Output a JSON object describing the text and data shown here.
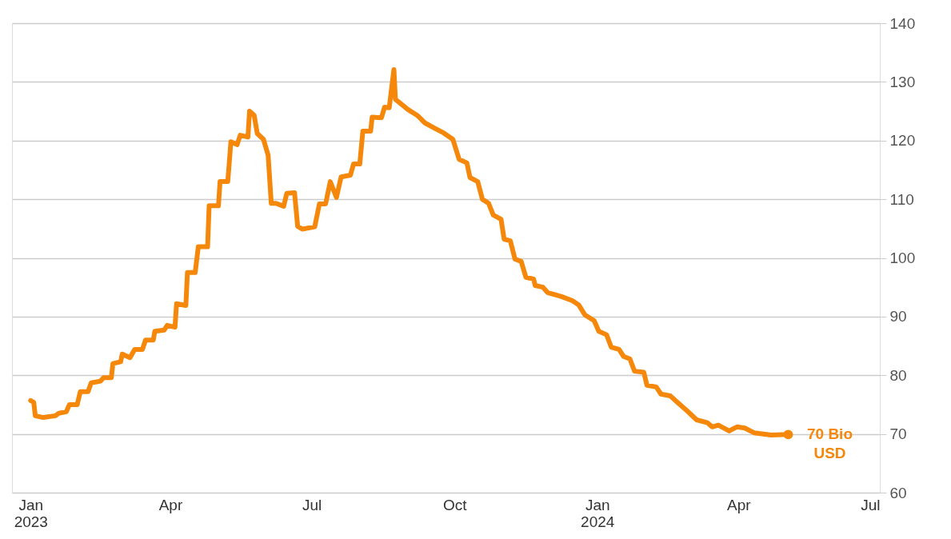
{
  "chart_data": {
    "type": "line",
    "x": [
      "2023-01-01",
      "2023-01-03",
      "2023-01-04",
      "2023-01-09",
      "2023-01-17",
      "2023-01-19",
      "2023-01-24",
      "2023-01-26",
      "2023-01-31",
      "2023-02-02",
      "2023-02-07",
      "2023-02-09",
      "2023-02-15",
      "2023-02-17",
      "2023-02-22",
      "2023-02-23",
      "2023-02-28",
      "2023-03-01",
      "2023-03-06",
      "2023-03-09",
      "2023-03-14",
      "2023-03-16",
      "2023-03-21",
      "2023-03-22",
      "2023-03-28",
      "2023-03-30",
      "2023-04-04",
      "2023-04-05",
      "2023-04-11",
      "2023-04-12",
      "2023-04-17",
      "2023-04-19",
      "2023-04-25",
      "2023-04-26",
      "2023-05-02",
      "2023-05-03",
      "2023-05-08",
      "2023-05-10",
      "2023-05-14",
      "2023-05-16",
      "2023-05-21",
      "2023-05-22",
      "2023-05-25",
      "2023-05-27",
      "2023-05-31",
      "2023-06-03",
      "2023-06-05",
      "2023-06-08",
      "2023-06-13",
      "2023-06-15",
      "2023-06-20",
      "2023-06-22",
      "2023-06-25",
      "2023-07-03",
      "2023-07-06",
      "2023-07-10",
      "2023-07-13",
      "2023-07-17",
      "2023-07-20",
      "2023-07-26",
      "2023-07-28",
      "2023-08-01",
      "2023-08-03",
      "2023-08-08",
      "2023-08-09",
      "2023-08-15",
      "2023-08-17",
      "2023-08-20",
      "2023-08-23",
      "2023-08-24",
      "2023-08-26",
      "2023-09-01",
      "2023-09-07",
      "2023-09-12",
      "2023-09-19",
      "2023-09-24",
      "2023-09-30",
      "2023-10-04",
      "2023-10-09",
      "2023-10-11",
      "2023-10-16",
      "2023-10-19",
      "2023-10-23",
      "2023-10-26",
      "2023-10-31",
      "2023-11-02",
      "2023-11-06",
      "2023-11-09",
      "2023-11-13",
      "2023-11-16",
      "2023-11-21",
      "2023-11-22",
      "2023-11-27",
      "2023-11-30",
      "2023-12-05",
      "2023-12-09",
      "2023-12-16",
      "2023-12-20",
      "2023-12-24",
      "2023-12-30",
      "2024-01-02",
      "2024-01-07",
      "2024-01-10",
      "2024-01-15",
      "2024-01-18",
      "2024-01-22",
      "2024-01-25",
      "2024-01-31",
      "2024-02-02",
      "2024-02-08",
      "2024-02-11",
      "2024-02-17",
      "2024-02-22",
      "2024-02-28",
      "2024-03-05",
      "2024-03-12",
      "2024-03-15",
      "2024-03-19",
      "2024-03-26",
      "2024-03-28",
      "2024-03-31",
      "2024-04-05",
      "2024-04-11",
      "2024-04-22",
      "2024-05-03"
    ],
    "series": [
      {
        "color": "#f5880a",
        "values": [
          75.7,
          75.4,
          73.1,
          72.8,
          73.1,
          73.5,
          73.8,
          75,
          75,
          77.2,
          77.2,
          78.7,
          79,
          79.6,
          79.6,
          82,
          82.3,
          83.6,
          83,
          84.4,
          84.4,
          86,
          86,
          87.5,
          87.7,
          88.5,
          88.2,
          92.2,
          91.9,
          97.5,
          97.5,
          101.9,
          101.9,
          108.9,
          108.9,
          113,
          113,
          119.8,
          119.3,
          120.9,
          120.6,
          125,
          124.3,
          121.2,
          120.2,
          117.5,
          109.3,
          109.3,
          108.8,
          111,
          111.1,
          105.4,
          104.9,
          105.3,
          109.2,
          109.2,
          113,
          110.3,
          113.8,
          114.1,
          116,
          116,
          121.6,
          121.6,
          124,
          123.9,
          125.7,
          125.6,
          132.1,
          127,
          126.6,
          125.3,
          124.3,
          123,
          122,
          121.3,
          120.2,
          116.8,
          116.2,
          113.7,
          113,
          110,
          109.3,
          107.3,
          106.6,
          103.2,
          102.9,
          99.8,
          99.4,
          96.7,
          96.4,
          95.3,
          95,
          94.1,
          93.7,
          93.4,
          92.7,
          92,
          90.3,
          89.3,
          87.5,
          86.9,
          84.8,
          84.4,
          83.2,
          82.8,
          80.7,
          80.5,
          78.3,
          78,
          76.8,
          76.5,
          75.3,
          73.9,
          72.4,
          71.9,
          71.2,
          71.5,
          70.5,
          70.8,
          71.2,
          71,
          70.2,
          69.8,
          69.9
        ]
      }
    ],
    "xlim": [
      "2022-12-20",
      "2024-07-01"
    ],
    "xticks": [
      {
        "value": "2023-01-01",
        "label": "Jan 2023"
      },
      {
        "value": "2023-04-01",
        "label": "Apr"
      },
      {
        "value": "2023-07-01",
        "label": "Jul"
      },
      {
        "value": "2023-10-01",
        "label": "Oct"
      },
      {
        "value": "2024-01-01",
        "label": "Jan 2024"
      },
      {
        "value": "2024-04-01",
        "label": "Apr"
      },
      {
        "value": "2024-07-01",
        "label": "Jul"
      }
    ],
    "ylim": [
      60,
      140
    ],
    "yticks": [
      60,
      70,
      80,
      90,
      100,
      110,
      120,
      130,
      140
    ],
    "grid": "y",
    "line_style": "solid",
    "annotations": [
      {
        "text": "70 Bio USD",
        "x": "2024-05-03",
        "y": 69.9
      }
    ]
  }
}
